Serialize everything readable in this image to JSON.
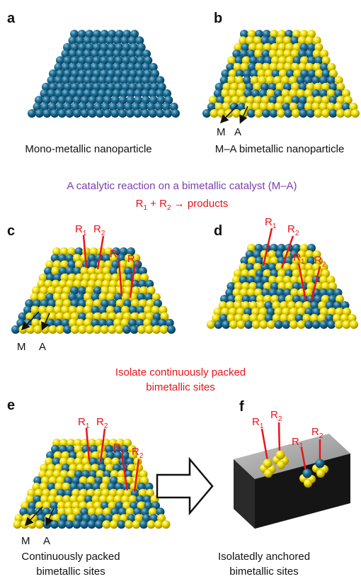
{
  "panels": {
    "a": {
      "letter": "a",
      "caption": "Mono-metallic nanoparticle"
    },
    "b": {
      "letter": "b",
      "caption": "M–A bimetallic nanoparticle",
      "m": "M",
      "a": "A"
    },
    "c": {
      "letter": "c",
      "m": "M",
      "a": "A",
      "labels": [
        {
          "main": "R",
          "sub": "1"
        },
        {
          "main": "R",
          "sub": "2"
        },
        {
          "main": "R",
          "sub": "1"
        },
        {
          "main": "R",
          "sub": "2"
        }
      ]
    },
    "d": {
      "letter": "d",
      "labels": [
        {
          "main": "R",
          "sub": "1"
        },
        {
          "main": "R",
          "sub": "2"
        },
        {
          "main": "R",
          "sub": "1"
        },
        {
          "main": "R",
          "sub": "2"
        }
      ]
    },
    "e": {
      "letter": "e",
      "m": "M",
      "a": "A",
      "labels": [
        {
          "main": "R",
          "sub": "1"
        },
        {
          "main": "R",
          "sub": "2"
        },
        {
          "main": "R",
          "sub": "1"
        },
        {
          "main": "R",
          "sub": "2"
        }
      ],
      "caption": [
        "Continuously packed",
        "bimetallic sites"
      ]
    },
    "f": {
      "letter": "f",
      "labels": [
        {
          "main": "R",
          "sub": "1"
        },
        {
          "main": "R",
          "sub": "2"
        },
        {
          "main": "R",
          "sub": "1"
        },
        {
          "main": "R",
          "sub": "2"
        }
      ],
      "caption": [
        "Isolatedly anchored",
        "bimetallic sites"
      ]
    }
  },
  "reaction": {
    "title": "A catalytic reaction on a bimetallic catalyst (M–A)",
    "equation": {
      "r1": "R",
      "s1": "1",
      "plus": " + R",
      "s2": "2",
      "rest": " → products"
    }
  },
  "isolate": [
    "Isolate continuously packed",
    "bimetallic sites"
  ]
}
